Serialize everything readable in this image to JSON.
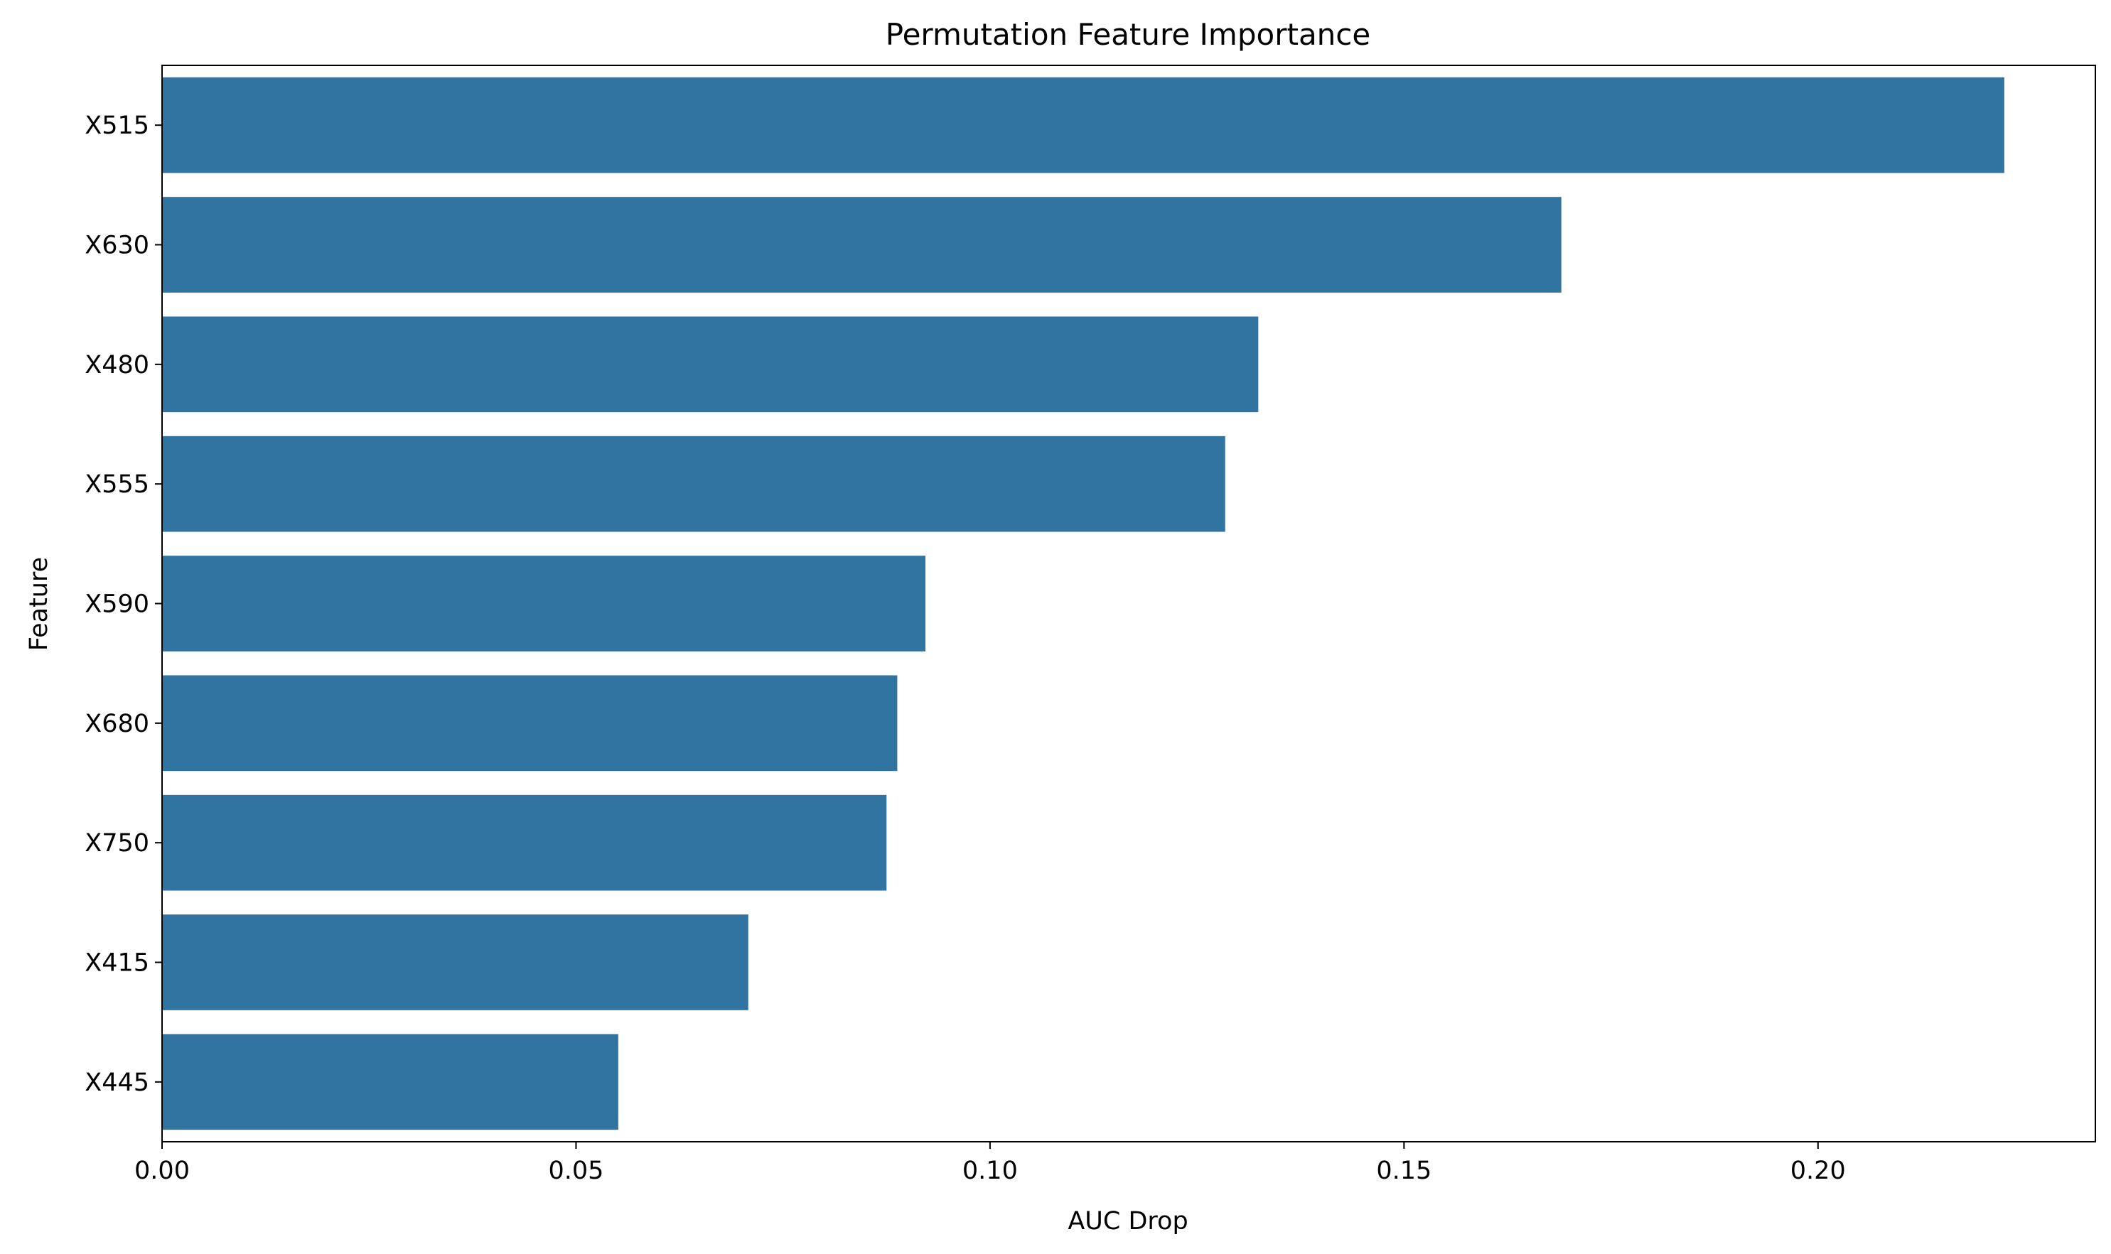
{
  "chart_data": {
    "type": "bar",
    "orientation": "horizontal",
    "title": "Permutation Feature Importance",
    "xlabel": "AUC Drop",
    "ylabel": "Feature",
    "categories": [
      "X515",
      "X630",
      "X480",
      "X555",
      "X590",
      "X680",
      "X750",
      "X415",
      "X445"
    ],
    "values": [
      0.2225,
      0.169,
      0.1324,
      0.1284,
      0.0922,
      0.0888,
      0.0875,
      0.0708,
      0.0551
    ],
    "xlim": [
      0,
      0.2335
    ],
    "xticks": [
      0.0,
      0.05,
      0.1,
      0.15,
      0.2
    ],
    "xtick_labels": [
      "0.00",
      "0.05",
      "0.10",
      "0.15",
      "0.20"
    ],
    "grid": false,
    "legend": "none",
    "bar_color": "#3274a1"
  }
}
